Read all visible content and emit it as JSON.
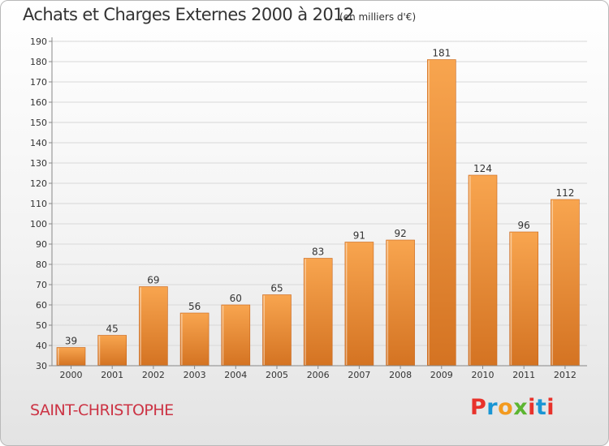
{
  "header": {
    "title": "Achats et Charges Externes 2000 à 2012",
    "subtitle": "(en milliers d'€)"
  },
  "footer": {
    "commune": "SAINT-CHRISTOPHE",
    "logo_text": "Proxiti",
    "logo_colors": [
      "#e8322b",
      "#1a96d4",
      "#f39a1f",
      "#5cb531",
      "#e8322b",
      "#1a96d4",
      "#e8322b"
    ]
  },
  "colors": {
    "bar_top": "#f8a54f",
    "bar_bottom": "#d47322",
    "grid": "#d8d8d8",
    "axis_text": "#333333"
  },
  "chart_data": {
    "type": "bar",
    "categories": [
      "2000",
      "2001",
      "2002",
      "2003",
      "2004",
      "2005",
      "2006",
      "2007",
      "2008",
      "2009",
      "2010",
      "2011",
      "2012"
    ],
    "values": [
      39,
      45,
      69,
      56,
      60,
      65,
      83,
      91,
      92,
      181,
      124,
      96,
      112
    ],
    "ylim": [
      30,
      190
    ],
    "yticks": [
      30,
      40,
      50,
      60,
      70,
      80,
      90,
      100,
      110,
      120,
      130,
      140,
      150,
      160,
      170,
      180,
      190
    ],
    "grid": true
  }
}
